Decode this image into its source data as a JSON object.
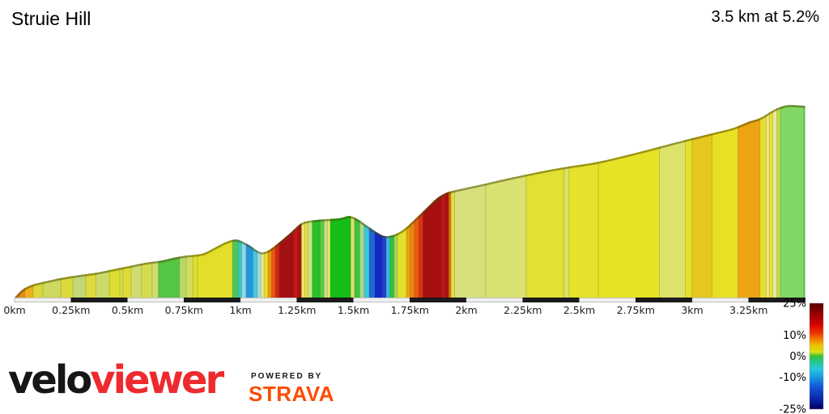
{
  "header": {
    "title": "Struie Hill",
    "stats": "3.5 km at 5.2%"
  },
  "footer": {
    "brand_black": "velo",
    "brand_red": "viewer",
    "brand_red_color": "#ed2b2f",
    "powered_by": "POWERED BY",
    "strava": "STRAVA",
    "strava_color": "#fc4c02"
  },
  "chart_data": {
    "type": "area",
    "title": "Struie Hill",
    "total_distance_km": 3.5,
    "avg_gradient_pct": 5.2,
    "x_unit": "km",
    "x_range_km": [
      0,
      3.5
    ],
    "grid": false,
    "x_ticks": [
      {
        "km": 0.0,
        "label": "0km"
      },
      {
        "km": 0.25,
        "label": "0.25km"
      },
      {
        "km": 0.5,
        "label": "0.5km"
      },
      {
        "km": 0.75,
        "label": "0.75km"
      },
      {
        "km": 1.0,
        "label": "1km"
      },
      {
        "km": 1.25,
        "label": "1.25km"
      },
      {
        "km": 1.5,
        "label": "1.5km"
      },
      {
        "km": 1.75,
        "label": "1.75km"
      },
      {
        "km": 2.0,
        "label": "2km"
      },
      {
        "km": 2.25,
        "label": "2.25km"
      },
      {
        "km": 2.5,
        "label": "2.5km"
      },
      {
        "km": 2.75,
        "label": "2.75km"
      },
      {
        "km": 3.0,
        "label": "3km"
      },
      {
        "km": 3.25,
        "label": "3.25km"
      }
    ],
    "profile_points": [
      [
        0.0,
        0.0
      ],
      [
        0.036,
        0.042
      ],
      [
        0.079,
        0.067
      ],
      [
        0.15,
        0.088
      ],
      [
        0.222,
        0.105
      ],
      [
        0.294,
        0.118
      ],
      [
        0.365,
        0.13
      ],
      [
        0.437,
        0.147
      ],
      [
        0.508,
        0.164
      ],
      [
        0.58,
        0.181
      ],
      [
        0.652,
        0.193
      ],
      [
        0.705,
        0.207
      ],
      [
        0.759,
        0.218
      ],
      [
        0.831,
        0.228
      ],
      [
        0.884,
        0.258
      ],
      [
        0.931,
        0.286
      ],
      [
        0.963,
        0.299
      ],
      [
        0.992,
        0.299
      ],
      [
        1.038,
        0.273
      ],
      [
        1.074,
        0.244
      ],
      [
        1.099,
        0.235
      ],
      [
        1.128,
        0.248
      ],
      [
        1.171,
        0.286
      ],
      [
        1.225,
        0.34
      ],
      [
        1.26,
        0.378
      ],
      [
        1.286,
        0.395
      ],
      [
        1.332,
        0.403
      ],
      [
        1.386,
        0.408
      ],
      [
        1.439,
        0.412
      ],
      [
        1.482,
        0.424
      ],
      [
        1.518,
        0.408
      ],
      [
        1.565,
        0.37
      ],
      [
        1.608,
        0.336
      ],
      [
        1.643,
        0.319
      ],
      [
        1.683,
        0.328
      ],
      [
        1.726,
        0.357
      ],
      [
        1.769,
        0.403
      ],
      [
        1.815,
        0.454
      ],
      [
        1.862,
        0.508
      ],
      [
        1.894,
        0.534
      ],
      [
        1.941,
        0.555
      ],
      [
        2.084,
        0.592
      ],
      [
        2.227,
        0.63
      ],
      [
        2.406,
        0.672
      ],
      [
        2.585,
        0.706
      ],
      [
        2.764,
        0.756
      ],
      [
        2.943,
        0.811
      ],
      [
        3.086,
        0.853
      ],
      [
        3.183,
        0.882
      ],
      [
        3.247,
        0.912
      ],
      [
        3.301,
        0.933
      ],
      [
        3.355,
        0.971
      ],
      [
        3.383,
        0.987
      ],
      [
        3.426,
        1.0
      ],
      [
        3.5,
        0.996
      ]
    ],
    "gradient_bands": [
      [
        0.0,
        0.045,
        "#e8881a"
      ],
      [
        0.045,
        0.082,
        "#edb11e"
      ],
      [
        0.082,
        0.125,
        "#ddd73a"
      ],
      [
        0.125,
        0.205,
        "#cdd85e"
      ],
      [
        0.205,
        0.258,
        "#dcd93c"
      ],
      [
        0.258,
        0.315,
        "#c2d878"
      ],
      [
        0.315,
        0.36,
        "#dcdb3a"
      ],
      [
        0.36,
        0.42,
        "#cddb6a"
      ],
      [
        0.42,
        0.466,
        "#e0dd32"
      ],
      [
        0.466,
        0.48,
        "#d6dd52"
      ],
      [
        0.48,
        0.516,
        "#dedc34"
      ],
      [
        0.516,
        0.562,
        "#cfdc72"
      ],
      [
        0.562,
        0.609,
        "#d5dc50"
      ],
      [
        0.609,
        0.637,
        "#cedd6e"
      ],
      [
        0.637,
        0.73,
        "#55c545"
      ],
      [
        0.73,
        0.76,
        "#b8d96a"
      ],
      [
        0.76,
        0.79,
        "#d2dc5c"
      ],
      [
        0.79,
        0.81,
        "#e0dd30"
      ],
      [
        0.81,
        0.965,
        "#e2df2a"
      ],
      [
        0.965,
        0.99,
        "#4cc85c"
      ],
      [
        0.99,
        1.005,
        "#38c8c8"
      ],
      [
        1.005,
        1.025,
        "#8cd8e8"
      ],
      [
        1.025,
        1.055,
        "#2596dc"
      ],
      [
        1.055,
        1.075,
        "#48c8e0"
      ],
      [
        1.075,
        1.09,
        "#a5dce0"
      ],
      [
        1.09,
        1.105,
        "#e6e88c"
      ],
      [
        1.105,
        1.122,
        "#e6de2c"
      ],
      [
        1.122,
        1.138,
        "#f09210"
      ],
      [
        1.138,
        1.155,
        "#e85514"
      ],
      [
        1.155,
        1.172,
        "#d42016"
      ],
      [
        1.172,
        1.235,
        "#a31013"
      ],
      [
        1.235,
        1.255,
        "#c41717"
      ],
      [
        1.255,
        1.27,
        "#a81014"
      ],
      [
        1.27,
        1.285,
        "#e8e870"
      ],
      [
        1.285,
        1.3,
        "#dfe23e"
      ],
      [
        1.3,
        1.318,
        "#cfe18a"
      ],
      [
        1.318,
        1.352,
        "#28c028"
      ],
      [
        1.352,
        1.37,
        "#55cc44"
      ],
      [
        1.37,
        1.385,
        "#cce088"
      ],
      [
        1.385,
        1.398,
        "#e0e868"
      ],
      [
        1.398,
        1.488,
        "#16bd16"
      ],
      [
        1.488,
        1.505,
        "#dede6e"
      ],
      [
        1.505,
        1.528,
        "#3cc43c"
      ],
      [
        1.528,
        1.548,
        "#a8d890"
      ],
      [
        1.548,
        1.57,
        "#3ec8dc"
      ],
      [
        1.57,
        1.595,
        "#2068d8"
      ],
      [
        1.595,
        1.628,
        "#1028c8"
      ],
      [
        1.628,
        1.645,
        "#2040d0"
      ],
      [
        1.645,
        1.662,
        "#38b8e0"
      ],
      [
        1.662,
        1.68,
        "#30c040"
      ],
      [
        1.68,
        1.695,
        "#a0d858"
      ],
      [
        1.695,
        1.735,
        "#e2e02c"
      ],
      [
        1.735,
        1.752,
        "#f0a010"
      ],
      [
        1.752,
        1.77,
        "#ec8810"
      ],
      [
        1.77,
        1.79,
        "#e85c12"
      ],
      [
        1.79,
        1.808,
        "#dc3014"
      ],
      [
        1.808,
        1.89,
        "#a50f12"
      ],
      [
        1.89,
        1.905,
        "#c01616"
      ],
      [
        1.905,
        1.922,
        "#a81013"
      ],
      [
        1.922,
        1.932,
        "#e07010"
      ],
      [
        1.932,
        1.948,
        "#e4dc40"
      ],
      [
        1.948,
        2.085,
        "#d7e07c"
      ],
      [
        2.085,
        2.265,
        "#d9e170"
      ],
      [
        2.265,
        2.432,
        "#e2e133"
      ],
      [
        2.432,
        2.455,
        "#dbe364"
      ],
      [
        2.455,
        2.585,
        "#e4e22a"
      ],
      [
        2.585,
        2.855,
        "#e6e327"
      ],
      [
        2.855,
        2.97,
        "#dde26a"
      ],
      [
        2.97,
        3.0,
        "#e4e030"
      ],
      [
        3.0,
        3.088,
        "#e5c81e"
      ],
      [
        3.088,
        3.203,
        "#e8e024"
      ],
      [
        3.203,
        3.3,
        "#eda414"
      ],
      [
        3.3,
        3.327,
        "#e8e030"
      ],
      [
        3.327,
        3.342,
        "#eee77e"
      ],
      [
        3.342,
        3.357,
        "#e6e23a"
      ],
      [
        3.357,
        3.375,
        "#e9ec9a"
      ],
      [
        3.375,
        3.392,
        "#bada50"
      ],
      [
        3.392,
        3.5,
        "#7fd863"
      ]
    ],
    "legend": {
      "position": "bottom-right",
      "range_pct": [
        -25,
        25
      ],
      "tick_values": [
        25,
        10,
        0,
        -10,
        -25
      ],
      "tick_labels": [
        "25%",
        "10%",
        "0%",
        "-10%",
        "-25%"
      ],
      "gradient_stops": [
        {
          "pos": 0.0,
          "color": "#550000"
        },
        {
          "pos": 0.1,
          "color": "#960000"
        },
        {
          "pos": 0.2,
          "color": "#d40000"
        },
        {
          "pos": 0.28,
          "color": "#ee3300"
        },
        {
          "pos": 0.34,
          "color": "#f47a00"
        },
        {
          "pos": 0.4,
          "color": "#edc400"
        },
        {
          "pos": 0.46,
          "color": "#d8e018"
        },
        {
          "pos": 0.5,
          "color": "#35c035"
        },
        {
          "pos": 0.56,
          "color": "#25c795"
        },
        {
          "pos": 0.62,
          "color": "#28c8dc"
        },
        {
          "pos": 0.7,
          "color": "#1897e2"
        },
        {
          "pos": 0.8,
          "color": "#1250d2"
        },
        {
          "pos": 0.9,
          "color": "#0a28a8"
        },
        {
          "pos": 1.0,
          "color": "#000066"
        }
      ]
    },
    "scale_bar": {
      "interval_km": 0.25,
      "colors_alternating": [
        "#f0f0f0",
        "#1c1c1c"
      ]
    }
  }
}
